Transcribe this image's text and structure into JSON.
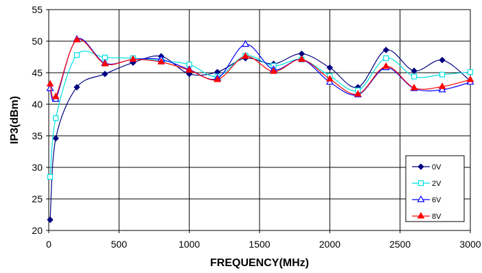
{
  "chart_data": {
    "type": "line",
    "title": "",
    "xlabel": "FREQUENCY(MHz)",
    "ylabel": "IP3(dBm)",
    "xlim": [
      0,
      3000
    ],
    "ylim": [
      20,
      55
    ],
    "x_ticks": [
      0,
      500,
      1000,
      1500,
      2000,
      2500,
      3000
    ],
    "y_ticks": [
      20,
      25,
      30,
      35,
      40,
      45,
      50,
      55
    ],
    "grid": true,
    "legend_position": "bottom-right",
    "series": [
      {
        "name": "0V",
        "color": "#000080",
        "marker": "diamond-filled",
        "x": [
          10,
          50,
          200,
          400,
          600,
          800,
          1000,
          1200,
          1400,
          1600,
          1800,
          2000,
          2200,
          2400,
          2600,
          2800,
          3000
        ],
        "y": [
          21.7,
          34.6,
          42.7,
          44.8,
          46.6,
          47.6,
          44.8,
          45.1,
          47.3,
          46.4,
          48.0,
          45.8,
          42.7,
          48.6,
          45.3,
          47.0,
          43.7
        ]
      },
      {
        "name": "2V",
        "color": "#00e0e0",
        "marker": "square-open",
        "x": [
          10,
          50,
          200,
          400,
          600,
          800,
          1000,
          1200,
          1400,
          1600,
          1800,
          2000,
          2200,
          2400,
          2600,
          2800,
          3000
        ],
        "y": [
          28.5,
          37.8,
          47.8,
          47.4,
          47.3,
          46.9,
          46.3,
          44.4,
          47.7,
          46.1,
          47.1,
          44.5,
          42.2,
          47.3,
          44.4,
          44.7,
          45.1
        ]
      },
      {
        "name": "6V",
        "color": "#0000ff",
        "marker": "triangle-open",
        "x": [
          10,
          50,
          200,
          400,
          600,
          800,
          1000,
          1200,
          1400,
          1600,
          1800,
          2000,
          2200,
          2400,
          2600,
          2800,
          3000
        ],
        "y": [
          42.5,
          40.8,
          50.3,
          46.5,
          47.1,
          47.1,
          45.5,
          44.1,
          49.5,
          45.5,
          47.1,
          43.5,
          41.5,
          45.8,
          42.5,
          42.3,
          43.5
        ]
      },
      {
        "name": "8V",
        "color": "#ff0000",
        "marker": "triangle-filled",
        "x": [
          10,
          50,
          200,
          400,
          600,
          800,
          1000,
          1200,
          1400,
          1600,
          1800,
          2000,
          2200,
          2400,
          2600,
          2800,
          3000
        ],
        "y": [
          43.2,
          41.2,
          50.2,
          46.4,
          47.1,
          46.7,
          45.4,
          43.9,
          47.6,
          45.2,
          47.1,
          44.0,
          41.6,
          46.0,
          42.6,
          42.8,
          43.9
        ]
      }
    ]
  }
}
